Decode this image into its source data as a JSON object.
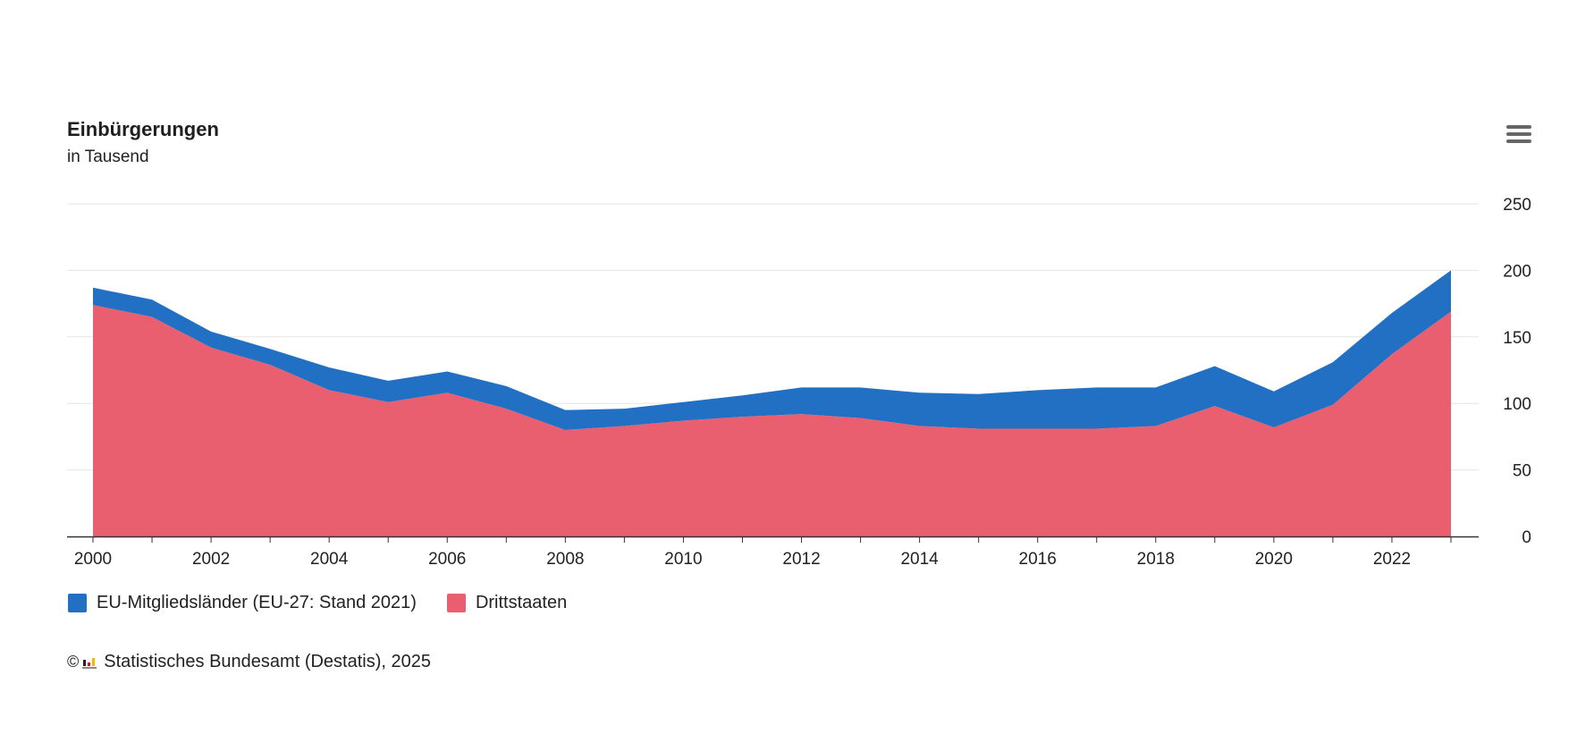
{
  "chart_data": {
    "type": "area",
    "stacked": true,
    "title": "Einbürgerungen",
    "subtitle": "in Tausend",
    "xlabel": "",
    "ylabel": "",
    "x": [
      2000,
      2001,
      2002,
      2003,
      2004,
      2005,
      2006,
      2007,
      2008,
      2009,
      2010,
      2011,
      2012,
      2013,
      2014,
      2015,
      2016,
      2017,
      2018,
      2019,
      2020,
      2021,
      2022,
      2023
    ],
    "x_tick_labels": [
      "2000",
      "2002",
      "2004",
      "2006",
      "2008",
      "2010",
      "2012",
      "2014",
      "2016",
      "2018",
      "2020",
      "2022"
    ],
    "ylim": [
      0,
      250
    ],
    "y_ticks": [
      0,
      50,
      100,
      150,
      200,
      250
    ],
    "y_axis_position": "right",
    "grid": true,
    "legend_position": "bottom-left",
    "series": [
      {
        "name": "Drittstaaten",
        "color": "#EA5F70",
        "values": [
          174,
          165,
          142,
          129,
          110,
          101,
          108,
          96,
          80,
          83,
          87,
          90,
          92,
          89,
          83,
          81,
          81,
          81,
          83,
          98,
          82,
          99,
          137,
          169
        ]
      },
      {
        "name": "EU-Mitgliedsländer (EU-27: Stand 2021)",
        "color": "#2270C4",
        "values": [
          13,
          13,
          12,
          12,
          17,
          16,
          16,
          17,
          15,
          13,
          14,
          16,
          20,
          23,
          25,
          26,
          29,
          31,
          29,
          30,
          27,
          32,
          31,
          31
        ]
      }
    ]
  },
  "legend": {
    "items": [
      {
        "label": "EU-Mitgliedsländer (EU-27: Stand 2021)",
        "color": "#2270C4"
      },
      {
        "label": "Drittstaaten",
        "color": "#EA5F70"
      }
    ]
  },
  "menu": {
    "icon": "hamburger-menu-icon"
  },
  "credits": {
    "copyright": "©",
    "logo_icon": "destatis-logo-icon",
    "text": "Statistisches Bundesamt (Destatis), 2025"
  }
}
